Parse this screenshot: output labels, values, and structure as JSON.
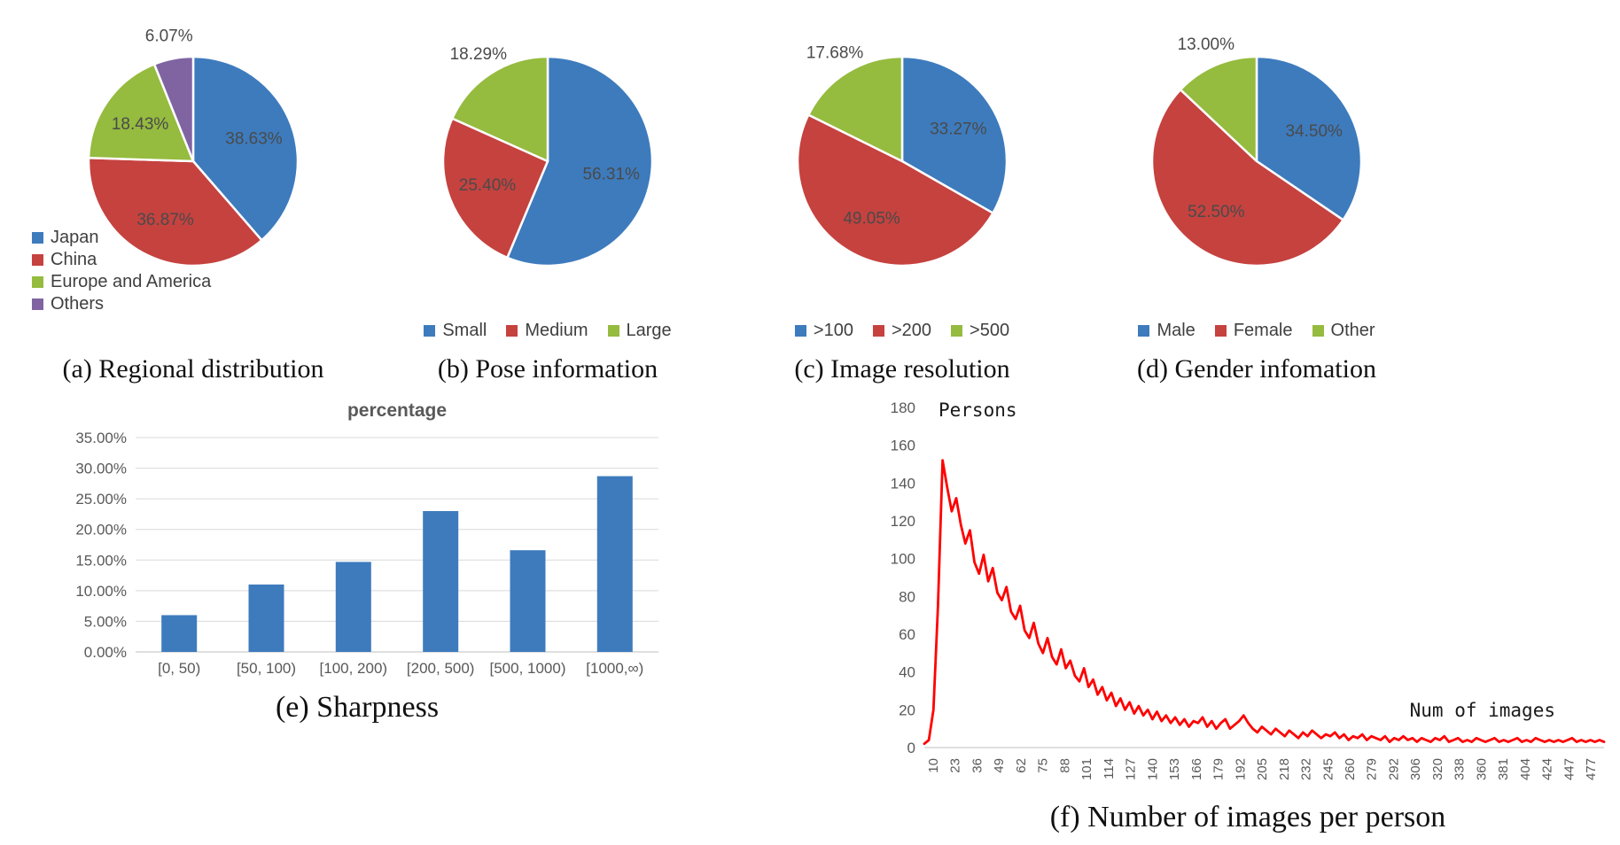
{
  "palette": {
    "blue": "#3D7BBD",
    "red": "#C5423F",
    "green": "#95BB3F",
    "purple": "#8064A2",
    "line_red": "#FF0000"
  },
  "chart_data": [
    {
      "type": "pie",
      "id": "regional-distribution",
      "caption": "(a) Regional distribution",
      "legend_layout": "vertical",
      "slices": [
        {
          "label": "Japan",
          "value": 38.63,
          "label_text": "38.63%",
          "color": "blue",
          "label_pos": "inside"
        },
        {
          "label": "China",
          "value": 36.87,
          "label_text": "36.87%",
          "color": "red",
          "label_pos": "inside"
        },
        {
          "label": "Europe and America",
          "value": 18.43,
          "label_text": "18.43%",
          "color": "green",
          "label_pos": "inside"
        },
        {
          "label": "Others",
          "value": 6.07,
          "label_text": "6.07%",
          "color": "purple",
          "label_pos": "outside"
        }
      ]
    },
    {
      "type": "pie",
      "id": "pose-information",
      "caption": "(b) Pose information",
      "legend_layout": "horizontal",
      "slices": [
        {
          "label": "Small",
          "value": 56.31,
          "label_text": "56.31%",
          "color": "blue",
          "label_pos": "inside"
        },
        {
          "label": "Medium",
          "value": 25.4,
          "label_text": "25.40%",
          "color": "red",
          "label_pos": "inside"
        },
        {
          "label": "Large",
          "value": 18.29,
          "label_text": "18.29%",
          "color": "green",
          "label_pos": "outside"
        }
      ]
    },
    {
      "type": "pie",
      "id": "image-resolution",
      "caption": "(c) Image resolution",
      "legend_layout": "horizontal",
      "slices": [
        {
          "label": ">100",
          "value": 33.27,
          "label_text": "33.27%",
          "color": "blue",
          "label_pos": "inside"
        },
        {
          "label": ">200",
          "value": 49.05,
          "label_text": "49.05%",
          "color": "red",
          "label_pos": "inside"
        },
        {
          "label": ">500",
          "value": 17.68,
          "label_text": "17.68%",
          "color": "green",
          "label_pos": "outside"
        }
      ]
    },
    {
      "type": "pie",
      "id": "gender-information",
      "caption": "(d) Gender infomation",
      "legend_layout": "horizontal",
      "slices": [
        {
          "label": "Male",
          "value": 34.5,
          "label_text": "34.50%",
          "color": "blue",
          "label_pos": "inside"
        },
        {
          "label": "Female",
          "value": 52.5,
          "label_text": "52.50%",
          "color": "red",
          "label_pos": "inside"
        },
        {
          "label": "Other",
          "value": 13.0,
          "label_text": "13.00%",
          "color": "green",
          "label_pos": "outside"
        }
      ]
    },
    {
      "type": "bar",
      "id": "sharpness",
      "caption": "(e) Sharpness",
      "title": "percentage",
      "categories": [
        "[0, 50)",
        "[50, 100)",
        "[100, 200)",
        "[200, 500)",
        "[500, 1000)",
        "[1000,∞)"
      ],
      "values": [
        6.0,
        11.0,
        14.7,
        23.0,
        16.6,
        28.7
      ],
      "ylim": [
        0,
        35
      ],
      "ytick_step": 5,
      "ytick_suffix": "%",
      "bar_color": "blue",
      "grid": true
    },
    {
      "type": "line",
      "id": "images-per-person",
      "caption": "(f) Number of images per person",
      "ylabel": "Persons",
      "xlabel": "Num of images",
      "ylim": [
        0,
        180
      ],
      "ytick_step": 20,
      "line_color": "line_red",
      "grid": false,
      "xticklabels": [
        "10",
        "23",
        "36",
        "49",
        "62",
        "75",
        "88",
        "101",
        "114",
        "127",
        "140",
        "153",
        "166",
        "179",
        "192",
        "205",
        "218",
        "232",
        "245",
        "260",
        "279",
        "292",
        "306",
        "320",
        "338",
        "360",
        "381",
        "404",
        "424",
        "447",
        "477"
      ],
      "y": [
        2,
        4,
        20,
        75,
        152,
        138,
        125,
        132,
        118,
        108,
        115,
        98,
        92,
        102,
        88,
        95,
        82,
        78,
        85,
        72,
        68,
        75,
        62,
        58,
        66,
        55,
        50,
        58,
        48,
        44,
        52,
        42,
        46,
        38,
        35,
        42,
        32,
        36,
        28,
        32,
        25,
        29,
        22,
        26,
        20,
        24,
        18,
        22,
        17,
        20,
        15,
        19,
        14,
        17,
        13,
        16,
        12,
        15,
        11,
        14,
        13,
        16,
        11,
        14,
        10,
        13,
        15,
        10,
        12,
        14,
        17,
        13,
        10,
        8,
        11,
        9,
        7,
        10,
        8,
        6,
        9,
        7,
        5,
        8,
        6,
        9,
        7,
        5,
        7,
        6,
        8,
        5,
        7,
        4,
        6,
        5,
        7,
        4,
        6,
        5,
        4,
        6,
        3,
        5,
        4,
        6,
        4,
        5,
        3,
        5,
        4,
        3,
        5,
        4,
        6,
        3,
        4,
        5,
        3,
        4,
        3,
        5,
        4,
        3,
        4,
        5,
        3,
        4,
        3,
        4,
        5,
        3,
        4,
        3,
        5,
        4,
        3,
        4,
        3,
        4,
        3,
        4,
        5,
        3,
        4,
        3,
        4,
        3,
        4,
        3
      ]
    }
  ]
}
